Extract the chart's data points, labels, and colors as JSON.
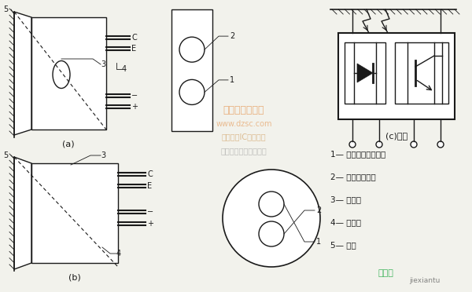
{
  "bg_color": "#f2f2ec",
  "line_color": "#1a1a1a",
  "fig_w": 6.0,
  "fig_h": 3.72,
  "dpi": 100,
  "legend_texts": [
    "1— 红外发光二极管；",
    "2— 光敏三极管；",
    "3— 外壳；",
    "4— 引脚；",
    "5— 物体"
  ],
  "watermark1": "维庄电子市场网",
  "watermark2": "www.dzsc.com",
  "watermark3": "全球最大IC采购网站",
  "watermark4": "杭州络睷科技有限公司",
  "wm_bottom1": "接线图",
  "wm_bottom2": "jiexiantu",
  "label_c": "(c)电路",
  "label_a": "(a)",
  "label_b": "(b)"
}
